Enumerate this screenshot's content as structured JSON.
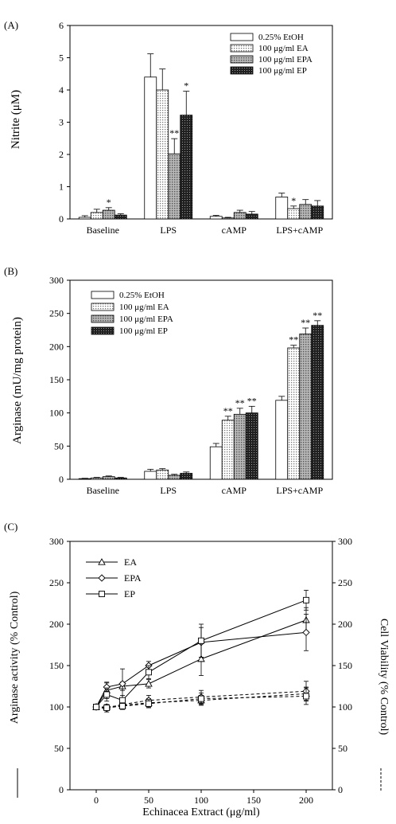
{
  "chart_data": [
    {
      "type": "bar",
      "panel_label": "(A)",
      "ylabel": "Nitrite (μM)",
      "xlabel": "",
      "ylim": [
        0,
        6
      ],
      "yticks": [
        0,
        1,
        2,
        3,
        4,
        5,
        6
      ],
      "grid": false,
      "legend_position": "top-right",
      "categories": [
        "Baseline",
        "LPS",
        "cAMP",
        "LPS+cAMP"
      ],
      "series": [
        {
          "name": "0.25% EtOH",
          "pattern": "white",
          "values": [
            0.05,
            4.4,
            0.08,
            0.68
          ],
          "errors": [
            0.05,
            0.72,
            0.03,
            0.12
          ],
          "marks": [
            "",
            "",
            "",
            ""
          ]
        },
        {
          "name": "100 μg/ml EA",
          "pattern": "dots",
          "values": [
            0.2,
            4.0,
            0.03,
            0.32
          ],
          "errors": [
            0.1,
            0.65,
            0.02,
            0.08
          ],
          "marks": [
            "",
            "",
            "",
            "*"
          ]
        },
        {
          "name": "100 μg/ml EPA",
          "pattern": "grey",
          "values": [
            0.27,
            2.02,
            0.2,
            0.45
          ],
          "errors": [
            0.08,
            0.47,
            0.07,
            0.15
          ],
          "marks": [
            "*",
            "**",
            "",
            ""
          ]
        },
        {
          "name": "100 μg/ml EP",
          "pattern": "dark",
          "values": [
            0.12,
            3.22,
            0.15,
            0.4
          ],
          "errors": [
            0.04,
            0.74,
            0.08,
            0.17
          ],
          "marks": [
            "",
            "*",
            "",
            ""
          ]
        }
      ]
    },
    {
      "type": "bar",
      "panel_label": "(B)",
      "ylabel": "Arginase (mU/mg protein)",
      "xlabel": "",
      "ylim": [
        0,
        300
      ],
      "yticks": [
        0,
        50,
        100,
        150,
        200,
        250,
        300
      ],
      "grid": false,
      "legend_position": "top-left",
      "categories": [
        "Baseline",
        "LPS",
        "cAMP",
        "LPS+cAMP"
      ],
      "series": [
        {
          "name": "0.25% EtOH",
          "pattern": "white",
          "values": [
            1,
            12,
            49,
            119
          ],
          "errors": [
            0.5,
            3,
            5,
            6
          ],
          "marks": [
            "",
            "",
            "",
            ""
          ]
        },
        {
          "name": "100 μg/ml EA",
          "pattern": "dots",
          "values": [
            2,
            14,
            89,
            198
          ],
          "errors": [
            0.8,
            2,
            6,
            4
          ],
          "marks": [
            "",
            "",
            "**",
            "**"
          ]
        },
        {
          "name": "100 μg/ml EPA",
          "pattern": "grey",
          "values": [
            4,
            6,
            98,
            219
          ],
          "errors": [
            1,
            1.5,
            9,
            9
          ],
          "marks": [
            "",
            "",
            "**",
            "**"
          ]
        },
        {
          "name": "100 μg/ml EP",
          "pattern": "dark",
          "values": [
            2,
            9,
            100,
            232
          ],
          "errors": [
            0.8,
            2,
            10,
            7
          ],
          "marks": [
            "",
            "",
            "**",
            "**"
          ]
        }
      ]
    },
    {
      "type": "line",
      "panel_label": "(C)",
      "xlabel": "Echinacea Extract (μg/ml)",
      "ylabel": "Arginase activity (% Control)",
      "ylabel_right": "Cell Viability (% Control)",
      "xlim": [
        -25,
        225
      ],
      "xticks": [
        0,
        50,
        100,
        150,
        200
      ],
      "ylim": [
        0,
        300
      ],
      "yticks": [
        0,
        50,
        100,
        150,
        200,
        250,
        300
      ],
      "grid": false,
      "legend_position": "top-left",
      "x": [
        0,
        10,
        25,
        50,
        100,
        200
      ],
      "series": [
        {
          "name": "EA",
          "marker": "triangle",
          "values": [
            100,
            120,
            125,
            128,
            158,
            205
          ],
          "errors": [
            0,
            10,
            5,
            5,
            20,
            15
          ],
          "viability": [
            100,
            100,
            102,
            105,
            108,
            116
          ],
          "viability_errors": [
            0,
            3,
            4,
            5,
            6,
            8
          ]
        },
        {
          "name": "EPA",
          "marker": "diamond",
          "values": [
            100,
            124,
            128,
            150,
            178,
            190
          ],
          "errors": [
            0,
            5,
            18,
            5,
            18,
            22
          ],
          "viability": [
            100,
            98,
            103,
            108,
            112,
            119
          ],
          "viability_errors": [
            0,
            4,
            5,
            6,
            8,
            12
          ]
        },
        {
          "name": "EP",
          "marker": "square",
          "values": [
            100,
            115,
            108,
            142,
            180,
            229
          ],
          "errors": [
            0,
            8,
            6,
            8,
            20,
            12
          ],
          "viability": [
            100,
            99,
            101,
            104,
            110,
            113
          ],
          "viability_errors": [
            0,
            3,
            4,
            5,
            7,
            10
          ]
        }
      ]
    }
  ]
}
